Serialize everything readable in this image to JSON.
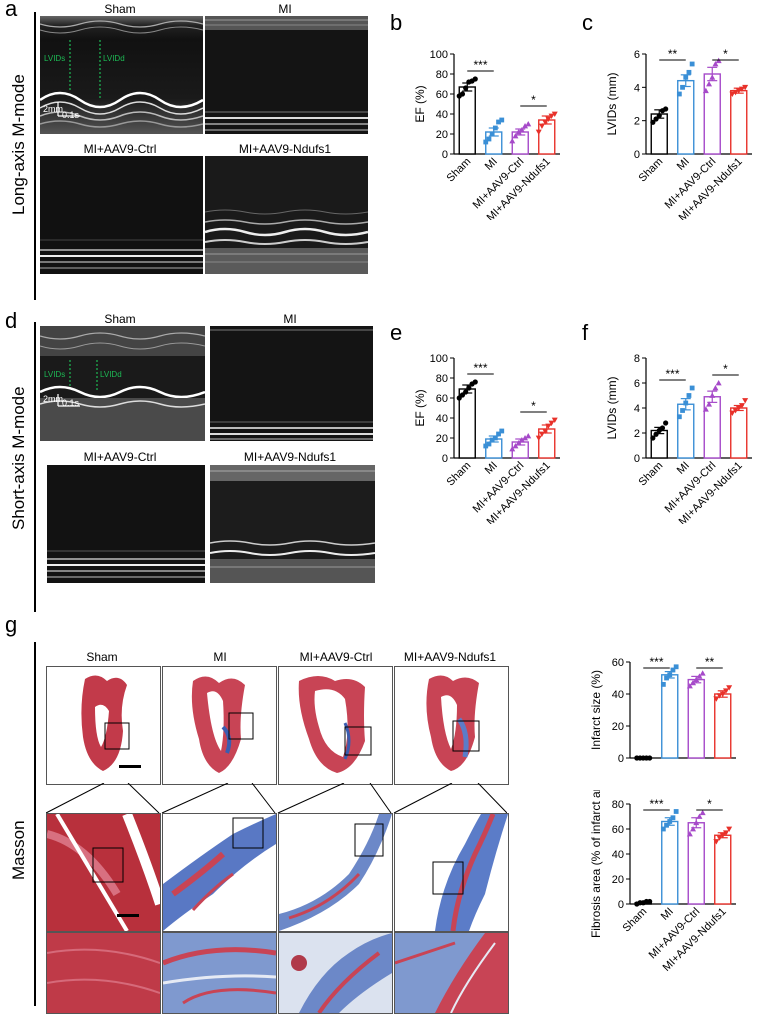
{
  "panel_letters": {
    "a": "a",
    "b": "b",
    "c": "c",
    "d": "d",
    "e": "e",
    "f": "f",
    "g": "g"
  },
  "row_labels": {
    "long_axis": "Long-axis M-mode",
    "short_axis": "Short-axis M-mode",
    "masson": "Masson"
  },
  "groups": [
    "Sham",
    "MI",
    "MI+AAV9-Ctrl",
    "MI+AAV9-Ndufs1"
  ],
  "echo_labels": {
    "lvids": "LVIDs",
    "lvidd": "LVIDd",
    "scale_mm": "2mm",
    "scale_s": "0.1s"
  },
  "colors": {
    "sham": "#000000",
    "mi": "#3a8fd6",
    "ctrl": "#a64ac9",
    "ndufs1": "#e8312a",
    "annot_green": "#1db954"
  },
  "chart_data": [
    {
      "id": "b",
      "type": "bar",
      "ylabel": "EF (%)",
      "ylim": [
        0,
        100
      ],
      "yticks": [
        0,
        20,
        40,
        60,
        80,
        100
      ],
      "categories": [
        "Sham",
        "MI",
        "MI+AAV9-Ctrl",
        "MI+AAV9-Ndufs1"
      ],
      "values": [
        67,
        22,
        22,
        34
      ],
      "errors": [
        4,
        4,
        3,
        4
      ],
      "points": [
        [
          58,
          60,
          66,
          72,
          73,
          75
        ],
        [
          12,
          15,
          20,
          26,
          32,
          34
        ],
        [
          13,
          18,
          22,
          24,
          28,
          30
        ],
        [
          22,
          28,
          32,
          35,
          38,
          40
        ]
      ],
      "sig": [
        {
          "from": 0,
          "to": 1,
          "label": "***"
        },
        {
          "from": 2,
          "to": 3,
          "label": "*"
        }
      ]
    },
    {
      "id": "c",
      "type": "bar",
      "ylabel": "LVIDs (mm)",
      "ylim": [
        0,
        6
      ],
      "yticks": [
        0,
        2,
        4,
        6
      ],
      "categories": [
        "Sham",
        "MI",
        "MI+AAV9-Ctrl",
        "MI+AAV9-Ndufs1"
      ],
      "values": [
        2.4,
        4.4,
        4.8,
        3.8
      ],
      "errors": [
        0.25,
        0.35,
        0.4,
        0.15
      ],
      "points": [
        [
          1.9,
          2.1,
          2.3,
          2.6,
          2.7
        ],
        [
          3.6,
          4.0,
          4.6,
          4.9,
          5.4
        ],
        [
          3.8,
          4.2,
          4.6,
          5.4,
          5.6
        ],
        [
          3.6,
          3.7,
          3.8,
          3.9,
          4.0
        ]
      ],
      "sig": [
        {
          "from": 0,
          "to": 1,
          "label": "**"
        },
        {
          "from": 2,
          "to": 3,
          "label": "*"
        }
      ]
    },
    {
      "id": "e",
      "type": "bar",
      "ylabel": "EF (%)",
      "ylim": [
        0,
        100
      ],
      "yticks": [
        0,
        20,
        40,
        60,
        80,
        100
      ],
      "categories": [
        "Sham",
        "MI",
        "MI+AAV9-Ctrl",
        "MI+AAV9-Ndufs1"
      ],
      "values": [
        69,
        19,
        16,
        29
      ],
      "errors": [
        4,
        3,
        3,
        4
      ],
      "points": [
        [
          60,
          63,
          66,
          70,
          74,
          76
        ],
        [
          12,
          14,
          18,
          20,
          24,
          27
        ],
        [
          9,
          12,
          15,
          18,
          20,
          22
        ],
        [
          20,
          24,
          27,
          32,
          35,
          38
        ]
      ],
      "sig": [
        {
          "from": 0,
          "to": 1,
          "label": "***"
        },
        {
          "from": 2,
          "to": 3,
          "label": "*"
        }
      ]
    },
    {
      "id": "f",
      "type": "bar",
      "ylabel": "LVIDs (mm)",
      "ylim": [
        0,
        8
      ],
      "yticks": [
        0,
        2,
        4,
        6,
        8
      ],
      "categories": [
        "Sham",
        "MI",
        "MI+AAV9-Ctrl",
        "MI+AAV9-Ndufs1"
      ],
      "values": [
        2.2,
        4.3,
        4.9,
        4.0
      ],
      "errors": [
        0.25,
        0.45,
        0.45,
        0.2
      ],
      "points": [
        [
          1.6,
          1.9,
          2.2,
          2.4,
          2.8
        ],
        [
          3.3,
          3.8,
          4.4,
          5.0,
          5.6
        ],
        [
          3.9,
          4.3,
          5.0,
          5.6,
          6.0
        ],
        [
          3.6,
          3.8,
          4.0,
          4.2,
          4.6
        ]
      ],
      "sig": [
        {
          "from": 0,
          "to": 1,
          "label": "***"
        },
        {
          "from": 2,
          "to": 3,
          "label": "*"
        }
      ]
    },
    {
      "id": "g1",
      "type": "bar",
      "ylabel": "Infarct size (%)",
      "ylim": [
        0,
        60
      ],
      "yticks": [
        0,
        20,
        40,
        60
      ],
      "categories": [
        "Sham",
        "MI",
        "MI+AAV9-Ctrl",
        "MI+AAV9-Ndufs1"
      ],
      "values": [
        0,
        52,
        49,
        40
      ],
      "errors": [
        0,
        2,
        2,
        2
      ],
      "points": [
        [
          0,
          0,
          0,
          0,
          0
        ],
        [
          46,
          50,
          52,
          55,
          57
        ],
        [
          45,
          47,
          49,
          51,
          53
        ],
        [
          37,
          39,
          40,
          42,
          44
        ]
      ],
      "sig": [
        {
          "from": 0,
          "to": 1,
          "label": "***"
        },
        {
          "from": 2,
          "to": 3,
          "label": "**"
        }
      ]
    },
    {
      "id": "g2",
      "type": "bar",
      "ylabel": "Fibrosis area (% of infarct area)",
      "ylim": [
        0,
        80
      ],
      "yticks": [
        0,
        20,
        40,
        60,
        80
      ],
      "categories": [
        "Sham",
        "MI",
        "MI+AAV9-Ctrl",
        "MI+AAV9-Ndufs1"
      ],
      "values": [
        1,
        66,
        65,
        55
      ],
      "errors": [
        0.5,
        3,
        4,
        2
      ],
      "points": [
        [
          0,
          1,
          1,
          2,
          2
        ],
        [
          60,
          63,
          66,
          69,
          74
        ],
        [
          56,
          60,
          65,
          70,
          73
        ],
        [
          50,
          53,
          55,
          57,
          60
        ]
      ],
      "sig": [
        {
          "from": 0,
          "to": 1,
          "label": "***"
        },
        {
          "from": 2,
          "to": 3,
          "label": "*"
        }
      ]
    }
  ]
}
